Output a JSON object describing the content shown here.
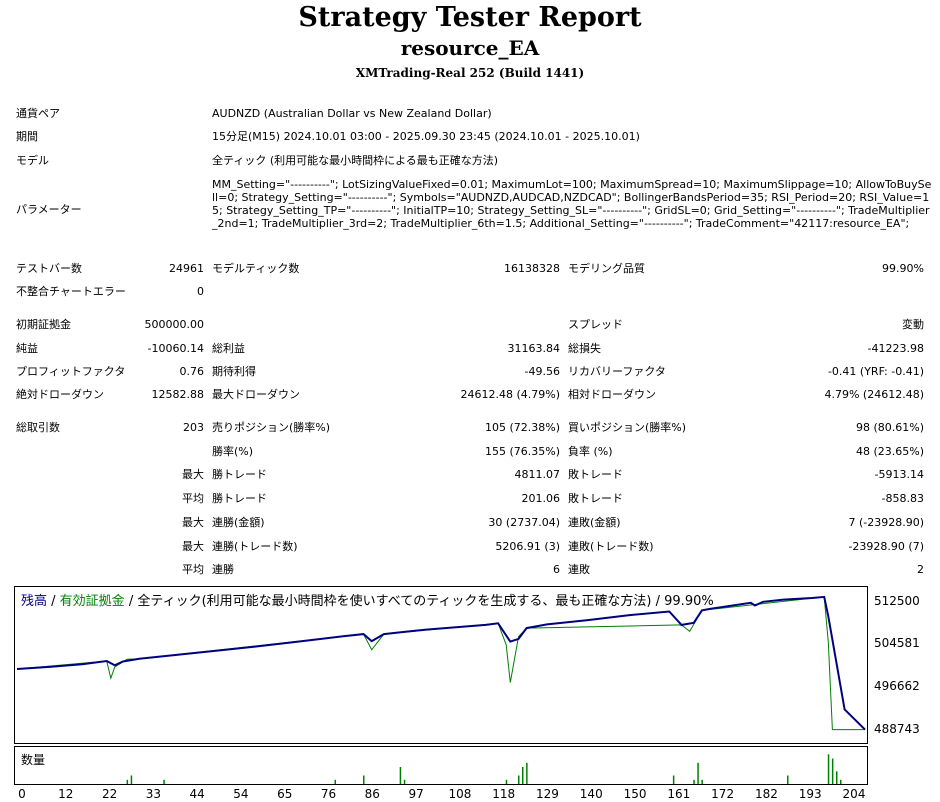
{
  "header": {
    "title": "Strategy Tester Report",
    "subtitle": "resource_EA",
    "build": "XMTrading-Real 252 (Build 1441)"
  },
  "info": {
    "symbol_label": "通貨ペア",
    "symbol_value": "AUDNZD (Australian Dollar vs New Zealand Dollar)",
    "period_label": "期間",
    "period_value": "15分足(M15) 2024.10.01 03:00 - 2025.09.30 23:45 (2024.10.01 - 2025.10.01)",
    "model_label": "モデル",
    "model_value": "全ティック (利用可能な最小時間枠による最も正確な方法)",
    "params_label": "パラメーター",
    "params_value": "MM_Setting=\"----------\"; LotSizingValueFixed=0.01; MaximumLot=100; MaximumSpread=10; MaximumSlippage=10; AllowToBuySell=0; Strategy_Setting=\"----------\"; Symbols=\"AUDNZD,AUDCAD,NZDCAD\"; BollingerBandsPeriod=35; RSI_Period=20; RSI_Value=15; Strategy_Setting_TP=\"----------\"; InitialTP=10; Strategy_Setting_SL=\"----------\"; GridSL=0; Grid_Setting=\"----------\"; TradeMultiplier_2nd=1; TradeMultiplier_3rd=2; TradeMultiplier_6th=1.5; Additional_Setting=\"----------\"; TradeComment=\"42117:resource_EA\";"
  },
  "stats": {
    "bars_label": "テストバー数",
    "bars_value": "24961",
    "ticks_label": "モデルティック数",
    "ticks_value": "16138328",
    "quality_label": "モデリング品質",
    "quality_value": "99.90%",
    "mismatch_label": "不整合チャートエラー",
    "mismatch_value": "0",
    "deposit_label": "初期証拠金",
    "deposit_value": "500000.00",
    "spread_label": "スプレッド",
    "spread_value": "変動",
    "netprofit_label": "純益",
    "netprofit_value": "-10060.14",
    "grossprofit_label": "総利益",
    "grossprofit_value": "31163.84",
    "grossloss_label": "総損失",
    "grossloss_value": "-41223.98",
    "pf_label": "プロフィットファクタ",
    "pf_value": "0.76",
    "expected_label": "期待利得",
    "expected_value": "-49.56",
    "recovery_label": "リカバリーファクタ",
    "recovery_value": "-0.41 (YRF: -0.41)",
    "absdd_label": "絶対ドローダウン",
    "absdd_value": "12582.88",
    "maxdd_label": "最大ドローダウン",
    "maxdd_value": "24612.48 (4.79%)",
    "reldd_label": "相対ドローダウン",
    "reldd_value": "4.79% (24612.48)",
    "trades_label": "総取引数",
    "trades_value": "203",
    "short_label": "売りポジション(勝率%)",
    "short_value": "105 (72.38%)",
    "long_label": "買いポジション(勝率%)",
    "long_value": "98 (80.61%)",
    "winrate_label": "勝率(%)",
    "winrate_value": "155 (76.35%)",
    "lossrate_label": "負率 (%)",
    "lossrate_value": "48 (23.65%)",
    "max1": "最大",
    "largest_win_label": "勝トレード",
    "largest_win_value": "4811.07",
    "largest_loss_label": "敗トレード",
    "largest_loss_value": "-5913.14",
    "avg1": "平均",
    "avg_win_label": "勝トレード",
    "avg_win_value": "201.06",
    "avg_loss_label": "敗トレード",
    "avg_loss_value": "-858.83",
    "max2": "最大",
    "cons_win_amt_label": "連勝(金額)",
    "cons_win_amt_value": "30 (2737.04)",
    "cons_loss_amt_label": "連敗(金額)",
    "cons_loss_amt_value": "7 (-23928.90)",
    "max3": "最大",
    "cons_win_trades_label": "連勝(トレード数)",
    "cons_win_trades_value": "5206.91 (3)",
    "cons_loss_trades_label": "連敗(トレード数)",
    "cons_loss_trades_value": "-23928.90 (7)",
    "avg2": "平均",
    "avg_cons_win_label": "連勝",
    "avg_cons_win_value": "6",
    "avg_cons_loss_label": "連敗",
    "avg_cons_loss_value": "2"
  },
  "chart_header": {
    "balance": "残高",
    "sep1": " / ",
    "equity": "有効証拠金",
    "sep2": " / ",
    "desc": "全ティック(利用可能な最小時間枠を使いすべてのティックを生成する、最も正確な方法) / 99.90%"
  },
  "volume_label": "数量",
  "colors": {
    "balance": "#000080",
    "equity": "#008000",
    "volume": "#008000"
  },
  "chart_data": {
    "type": "line",
    "ylim": [
      487000,
      514500
    ],
    "yticks": [
      "512500",
      "504581",
      "496662",
      "488743"
    ],
    "xticks": [
      "0",
      "12",
      "22",
      "33",
      "44",
      "54",
      "65",
      "76",
      "86",
      "97",
      "108",
      "118",
      "129",
      "140",
      "150",
      "161",
      "172",
      "182",
      "193",
      "204"
    ],
    "x_range": [
      0,
      208
    ],
    "series": [
      {
        "name": "残高",
        "x": [
          0,
          8,
          16,
          22,
          24,
          26,
          30,
          40,
          50,
          60,
          70,
          80,
          85,
          87,
          90,
          95,
          100,
          105,
          115,
          118,
          121,
          123,
          125,
          130,
          140,
          150,
          160,
          163,
          166,
          168,
          170,
          180,
          181,
          183,
          188,
          195,
          198,
          199,
          203,
          208
        ],
        "values": [
          500000,
          500400,
          500900,
          501500,
          500700,
          501400,
          501900,
          502700,
          503500,
          504300,
          505200,
          506100,
          506500,
          505200,
          506500,
          506900,
          507300,
          507600,
          508200,
          508500,
          505100,
          505600,
          507600,
          508300,
          509100,
          510000,
          510700,
          508200,
          508600,
          510900,
          511200,
          512300,
          511800,
          512500,
          512900,
          513200,
          513400,
          509800,
          492500,
          488743
        ]
      },
      {
        "name": "有効証拠金",
        "x": [
          0,
          22,
          23,
          24,
          27,
          30,
          85,
          87,
          90,
          118,
          120,
          121,
          123,
          125,
          163,
          165,
          168,
          198,
          199,
          200,
          203,
          208
        ],
        "values": [
          500000,
          501500,
          498300,
          500400,
          501800,
          501900,
          506500,
          503600,
          506500,
          508500,
          504500,
          497500,
          506000,
          507600,
          508200,
          507000,
          510900,
          513400,
          505000,
          488743,
          488743,
          488743
        ]
      }
    ],
    "volume": {
      "x": [
        27,
        28,
        36,
        78,
        85,
        94,
        95,
        120,
        123,
        124,
        125,
        161,
        166,
        167,
        168,
        189,
        199,
        200,
        201,
        202
      ],
      "values": [
        1,
        2,
        1,
        1,
        2,
        4,
        1,
        1,
        2,
        4,
        5,
        2,
        1,
        5,
        1,
        2,
        7,
        6,
        3,
        1
      ]
    }
  }
}
